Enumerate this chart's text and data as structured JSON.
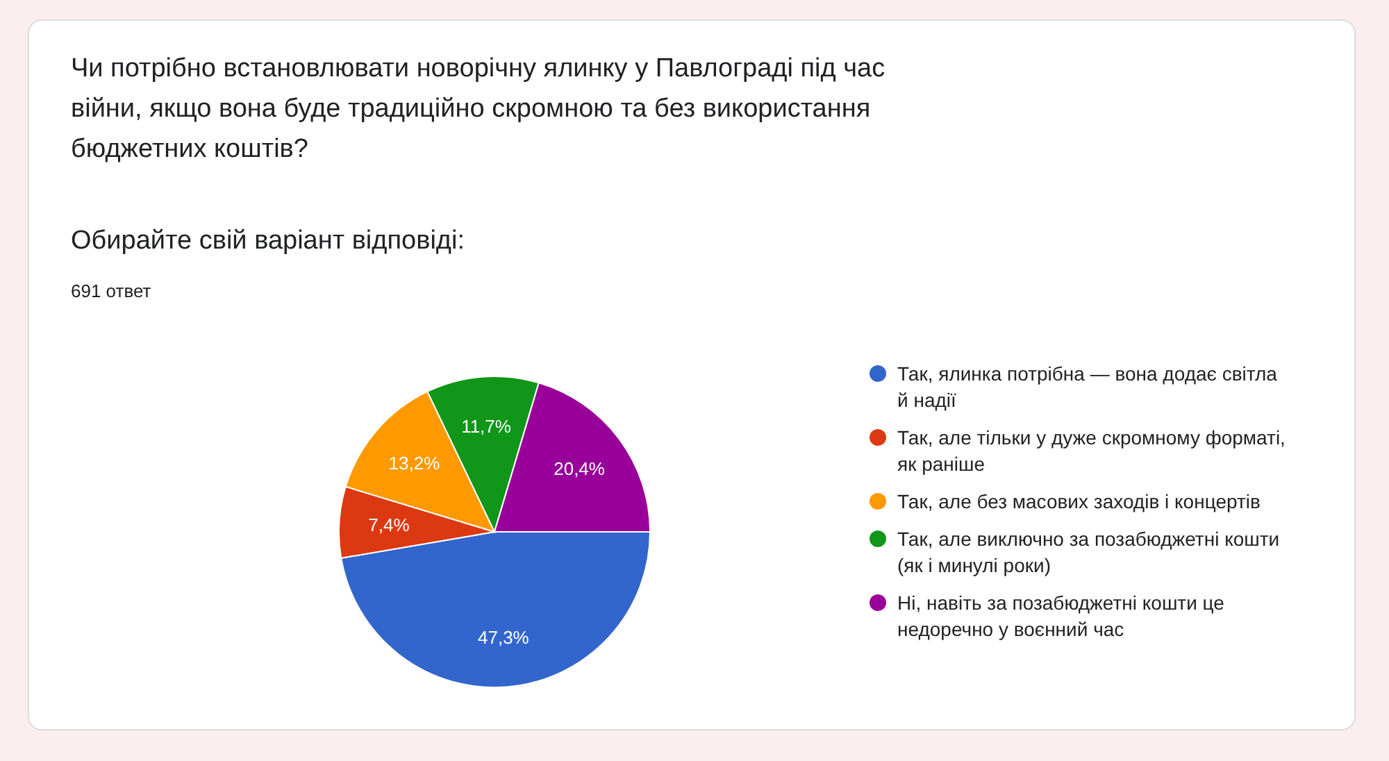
{
  "chart_data": {
    "type": "pie",
    "title": "Чи потрібно встановлювати новорічну ялинку у Павлограді під час війни, якщо вона буде традиційно скромною та без використання бюджетних коштів?",
    "subtitle": "Обирайте свій варіант відповіді:",
    "annotations": [
      "691 ответ"
    ],
    "categories": [
      "Так, ялинка потрібна — вона додає світла й надії",
      "Так, але тільки у дуже скромному форматі, як раніше",
      "Так, але без масових заходів і концертів",
      "Так, але виключно за позабюджетні кошти (як і минулі роки)",
      "Ні, навіть за позабюджетні кошти це недоречно у воєнний час"
    ],
    "values": [
      47.3,
      7.4,
      13.2,
      11.7,
      20.4
    ],
    "value_labels": [
      "47,3%",
      "7,4%",
      "13,2%",
      "11,7%",
      "20,4%"
    ],
    "colors": [
      "#3366cc",
      "#dc3912",
      "#ff9900",
      "#109618",
      "#990099"
    ],
    "legend": "right"
  }
}
